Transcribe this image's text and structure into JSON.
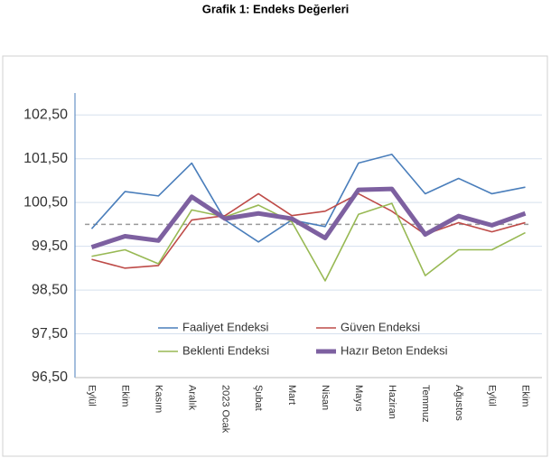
{
  "chart_data": {
    "type": "line",
    "title": "Grafik 1: Endeks Değerleri",
    "categories": [
      "Eylül",
      "Ekim",
      "Kasım",
      "Aralık",
      "2023 Ocak",
      "Şubat",
      "Mart",
      "Nisan",
      "Mayıs",
      "Haziran",
      "Temmuz",
      "Ağustos",
      "Eylül",
      "Ekim"
    ],
    "series": [
      {
        "name": "Faaliyet Endeksi",
        "color": "#4a7ebb",
        "values": [
          99.9,
          100.75,
          100.65,
          101.4,
          100.1,
          99.6,
          100.1,
          99.95,
          101.4,
          101.6,
          100.7,
          101.05,
          100.7,
          100.85
        ]
      },
      {
        "name": "Güven Endeksi",
        "color": "#be4b48",
        "values": [
          99.2,
          99.0,
          99.06,
          100.1,
          100.2,
          100.7,
          100.2,
          100.3,
          100.7,
          100.3,
          99.77,
          100.04,
          99.83,
          100.04
        ]
      },
      {
        "name": "Beklenti Endeksi",
        "color": "#98b954",
        "values": [
          99.27,
          99.42,
          99.1,
          100.33,
          100.17,
          100.44,
          100.06,
          98.71,
          100.23,
          100.48,
          98.83,
          99.42,
          99.42,
          99.81
        ]
      },
      {
        "name": "Hazır Beton Endeksi",
        "color": "#7d60a0",
        "values": [
          99.48,
          99.73,
          99.63,
          100.63,
          100.13,
          100.25,
          100.13,
          99.69,
          100.79,
          100.81,
          99.77,
          100.19,
          99.98,
          100.25
        ]
      }
    ],
    "reference_line": 100,
    "ylim": [
      96.5,
      103.0
    ],
    "yticks": [
      {
        "value": 96.5,
        "label": "96,50"
      },
      {
        "value": 97.5,
        "label": "97,50"
      },
      {
        "value": 98.5,
        "label": "98,50"
      },
      {
        "value": 99.5,
        "label": "99,50"
      },
      {
        "value": 100.5,
        "label": "100,50"
      },
      {
        "value": 101.5,
        "label": "101,50"
      },
      {
        "value": 102.5,
        "label": "102,50"
      }
    ],
    "grid": true
  }
}
